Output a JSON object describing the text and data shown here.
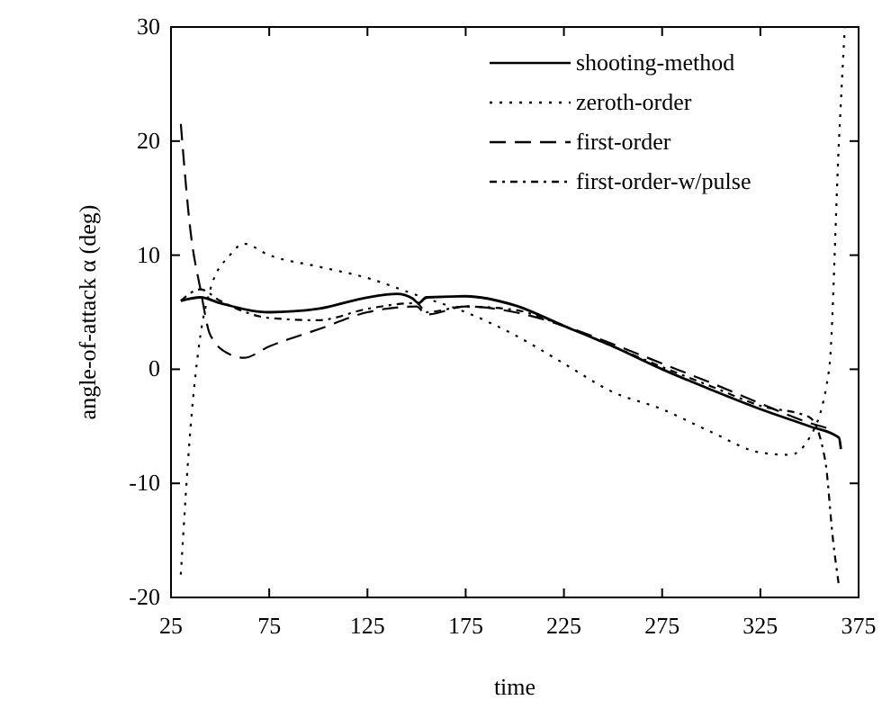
{
  "chart_data": {
    "type": "line",
    "xlabel": "time",
    "ylabel": "angle-of-attack α (deg)",
    "xlim": [
      25,
      375
    ],
    "ylim": [
      -20,
      30
    ],
    "xticks": [
      25,
      75,
      125,
      175,
      225,
      275,
      325,
      375
    ],
    "yticks": [
      -20,
      -10,
      0,
      10,
      20,
      30
    ],
    "grid": false,
    "legend": "top right",
    "series": [
      {
        "name": "shooting-method",
        "color": "#000000",
        "line_style": "solid",
        "x": [
          30,
          40,
          50,
          75,
          100,
          125,
          140,
          148,
          151,
          155,
          175,
          200,
          225,
          250,
          275,
          300,
          325,
          350,
          365,
          366
        ],
        "values": [
          6,
          6.3,
          5.8,
          5,
          5.3,
          6.3,
          6.6,
          6.2,
          5.8,
          6.3,
          6.4,
          5.6,
          3.8,
          2,
          0,
          -1.8,
          -3.5,
          -5,
          -6,
          -7
        ]
      },
      {
        "name": "zeroth-order",
        "color": "#000000",
        "line_style": "dotted",
        "x": [
          30,
          35,
          40,
          45,
          55,
          62,
          75,
          100,
          125,
          150,
          175,
          200,
          225,
          250,
          275,
          300,
          325,
          340,
          350,
          360,
          365,
          368
        ],
        "values": [
          -18,
          -5,
          3,
          7,
          10,
          11,
          10,
          9,
          8,
          6.5,
          5,
          3,
          0.5,
          -2,
          -3.5,
          -5.5,
          -7.3,
          -7.5,
          -6,
          0,
          20,
          30
        ]
      },
      {
        "name": "first-order",
        "color": "#000000",
        "line_style": "dashed",
        "x": [
          30,
          35,
          40,
          45,
          55,
          62,
          75,
          100,
          125,
          150,
          155,
          175,
          200,
          225,
          250,
          275,
          300,
          325,
          350,
          360
        ],
        "values": [
          21.5,
          12,
          7,
          3,
          1.3,
          1,
          2,
          3.5,
          5,
          5.5,
          4.8,
          5.5,
          5,
          3.8,
          2.2,
          0.5,
          -1.2,
          -3,
          -4.7,
          -5.2
        ]
      },
      {
        "name": "first-order-w/pulse",
        "color": "#000000",
        "line_style": "dashdot",
        "x": [
          30,
          40,
          50,
          75,
          100,
          125,
          150,
          155,
          175,
          200,
          225,
          250,
          275,
          300,
          325,
          350,
          358,
          362,
          365
        ],
        "values": [
          6,
          7,
          6,
          4.5,
          4.3,
          5.3,
          5.8,
          5,
          5.5,
          5.2,
          3.8,
          2,
          0.2,
          -1.5,
          -3.2,
          -4.2,
          -8,
          -15,
          -19
        ]
      }
    ]
  }
}
